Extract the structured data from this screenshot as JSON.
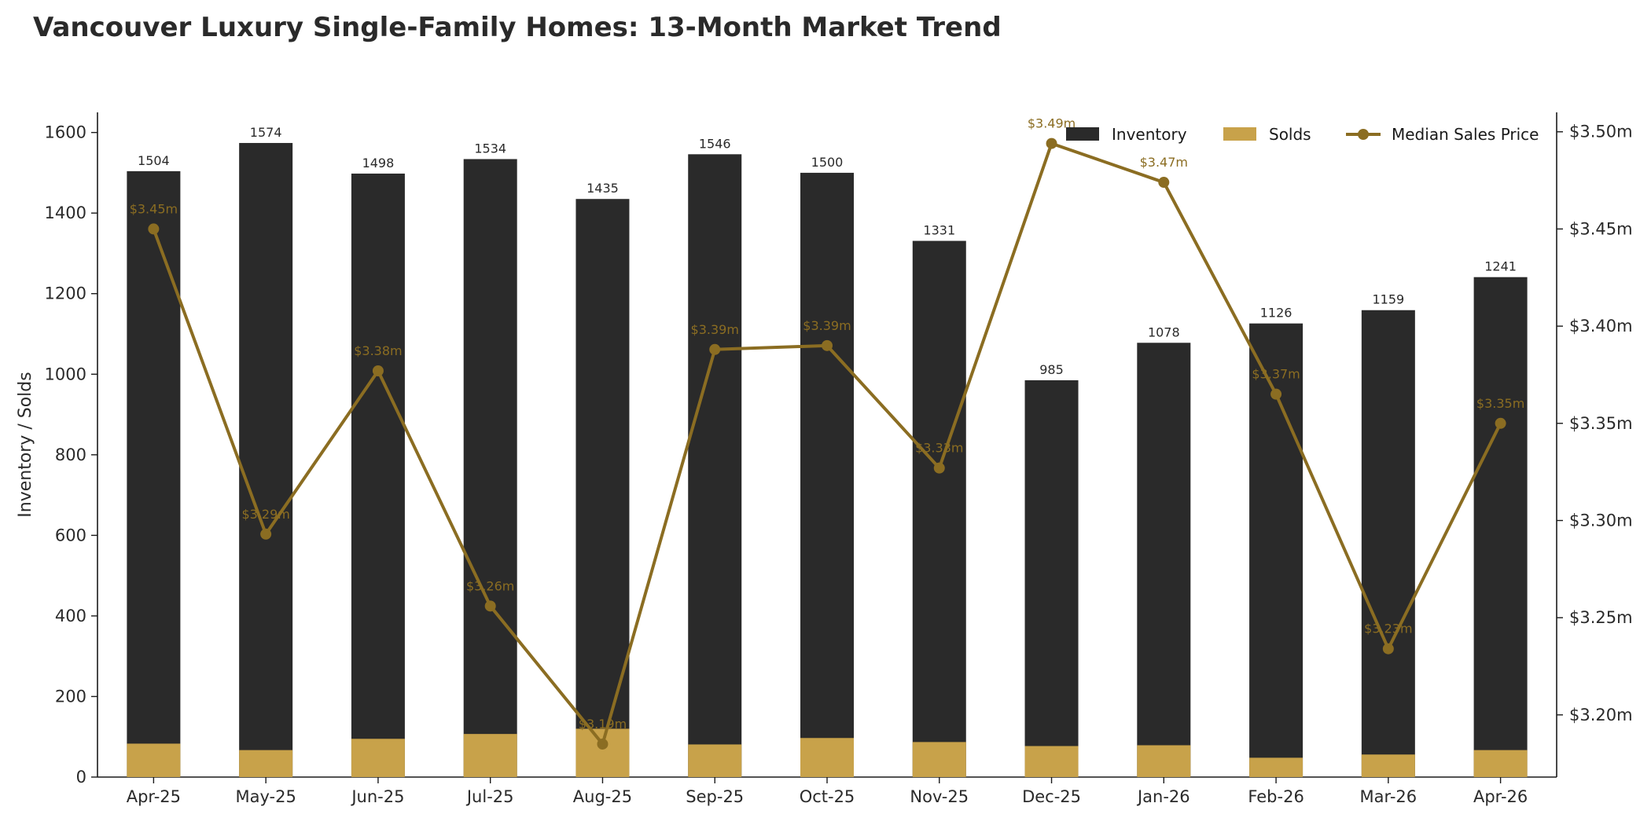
{
  "chart_data": {
    "type": "bar",
    "title": "Vancouver Luxury Single-Family Homes: 13-Month Market Trend",
    "ylabel": "Inventory / Solds",
    "categories": [
      "Apr-25",
      "May-25",
      "Jun-25",
      "Jul-25",
      "Aug-25",
      "Sep-25",
      "Oct-25",
      "Nov-25",
      "Dec-25",
      "Jan-26",
      "Feb-26",
      "Mar-26",
      "Apr-26"
    ],
    "ylim": [
      0,
      1650
    ],
    "y_ticks": [
      "0",
      "200",
      "400",
      "600",
      "800",
      "1000",
      "1200",
      "1400",
      "1600"
    ],
    "y2lim": [
      3.168,
      3.51
    ],
    "y2_ticks": [
      3.2,
      3.25,
      3.3,
      3.35,
      3.4,
      3.45,
      3.5
    ],
    "y2_tick_labels": [
      "$3.20m",
      "$3.25m",
      "$3.30m",
      "$3.35m",
      "$3.40m",
      "$3.45m",
      "$3.50m"
    ],
    "series": [
      {
        "name": "Inventory",
        "kind": "bar",
        "color": "#2a2a2a",
        "values": [
          1504,
          1574,
          1498,
          1534,
          1435,
          1546,
          1500,
          1331,
          985,
          1078,
          1126,
          1159,
          1241
        ],
        "labels": [
          "1504",
          "1574",
          "1498",
          "1534",
          "1435",
          "1546",
          "1500",
          "1331",
          "985",
          "1078",
          "1126",
          "1159",
          "1241"
        ]
      },
      {
        "name": "Solds",
        "kind": "bar",
        "color": "#c8a24a",
        "values": [
          83,
          67,
          95,
          107,
          120,
          81,
          97,
          87,
          77,
          79,
          48,
          56,
          67
        ]
      },
      {
        "name": "Median Sales Price",
        "kind": "line",
        "axis": "right",
        "color": "#8b6d22",
        "values": [
          3.45,
          3.293,
          3.377,
          3.256,
          3.185,
          3.388,
          3.39,
          3.327,
          3.494,
          3.474,
          3.365,
          3.234,
          3.35
        ],
        "labels": [
          "$3.45m",
          "$3.29m",
          "$3.38m",
          "$3.26m",
          "$3.19m",
          "$3.39m",
          "$3.39m",
          "$3.33m",
          "$3.49m",
          "$3.47m",
          "$3.37m",
          "$3.23m",
          "$3.35m"
        ]
      }
    ],
    "legend": {
      "position": "top-right",
      "items": [
        "Inventory",
        "Solds",
        "Median Sales Price"
      ]
    },
    "grid": false
  }
}
